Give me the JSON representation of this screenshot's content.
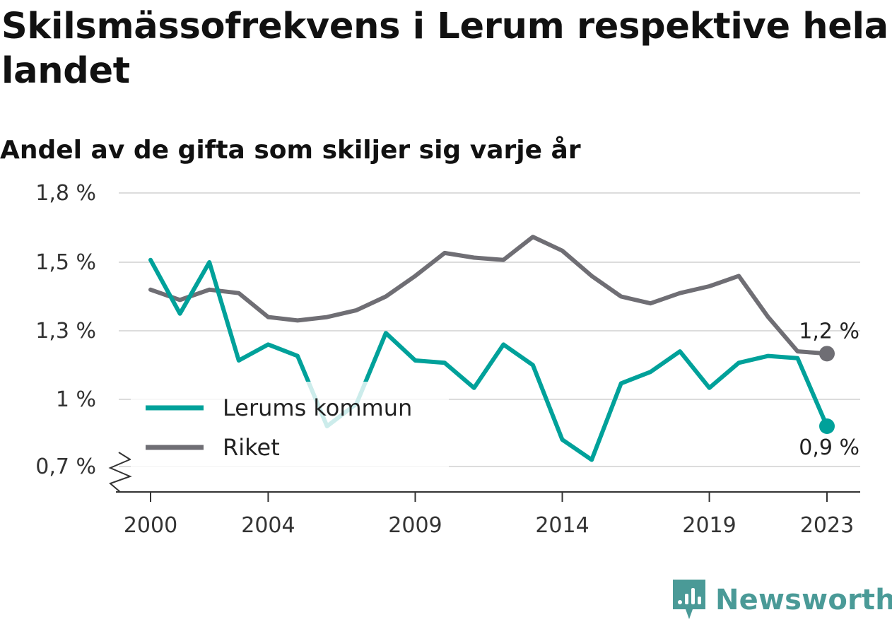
{
  "chart_data": {
    "type": "line",
    "title": "Skilsmässofrekvens i Lerum respektive hela landet",
    "subtitle": "Andel av de gifta som skiljer sig varje år",
    "ylim": [
      0.7,
      1.8
    ],
    "y_ticks": [
      "0,7 %",
      "1 %",
      "1,3 %",
      "1,5 %",
      "1,8 %"
    ],
    "x_ticks": [
      "2000",
      "2004",
      "2009",
      "2014",
      "2019",
      "2023"
    ],
    "grid": true,
    "legend_position": "bottom-left",
    "x": [
      2000,
      2001,
      2002,
      2003,
      2004,
      2005,
      2006,
      2007,
      2008,
      2009,
      2010,
      2011,
      2012,
      2013,
      2014,
      2015,
      2016,
      2017,
      2018,
      2019,
      2020,
      2021,
      2022,
      2023
    ],
    "series": [
      {
        "name": "Lerums kommun",
        "color": "#00a19a",
        "values": [
          1.51,
          1.35,
          1.5,
          1.17,
          1.24,
          1.19,
          0.88,
          0.98,
          1.29,
          1.17,
          1.16,
          1.05,
          1.24,
          1.15,
          0.82,
          0.73,
          1.07,
          1.12,
          1.21,
          1.05,
          1.16,
          1.19,
          1.18,
          0.88
        ],
        "end_label": "0,9 %"
      },
      {
        "name": "Riket",
        "color": "#6f6e74",
        "values": [
          1.42,
          1.39,
          1.42,
          1.41,
          1.34,
          1.33,
          1.34,
          1.36,
          1.4,
          1.46,
          1.54,
          1.52,
          1.51,
          1.61,
          1.55,
          1.46,
          1.4,
          1.38,
          1.41,
          1.43,
          1.46,
          1.34,
          1.21,
          1.2
        ],
        "end_label": "1,2 %"
      }
    ]
  },
  "brand": {
    "name": "Newsworthy",
    "icon": "bar-chart-speech-bubble-icon",
    "color": "#4a9a97"
  }
}
